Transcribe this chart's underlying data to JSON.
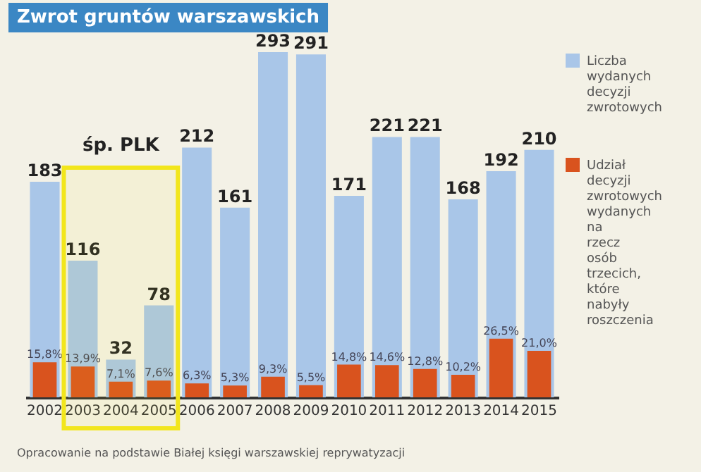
{
  "chart_data": {
    "type": "bar",
    "title": "Zwrot gruntów warszawskich",
    "categories": [
      "2002",
      "2003",
      "2004",
      "2005",
      "2006",
      "2007",
      "2008",
      "2009",
      "2010",
      "2011",
      "2012",
      "2013",
      "2014",
      "2015"
    ],
    "series": [
      {
        "name": "Liczba wydanych decyzji zwrotowych",
        "color": "#a9c6e8",
        "values": [
          183,
          116,
          32,
          78,
          212,
          161,
          293,
          291,
          171,
          221,
          221,
          168,
          192,
          210
        ],
        "value_labels": [
          "183",
          "116",
          "32",
          "78",
          "212",
          "161",
          "293",
          "291",
          "171",
          "221",
          "221",
          "168",
          "192",
          "210"
        ]
      },
      {
        "name": "Udział decyzji zwrotowych wydanych na rzecz osób trzecich, które nabyły roszczenia",
        "color": "#d9531e",
        "axis": "y2",
        "values": [
          15.8,
          13.9,
          7.1,
          7.6,
          6.3,
          5.3,
          9.3,
          5.5,
          14.8,
          14.6,
          12.8,
          10.2,
          26.5,
          21.0
        ],
        "value_labels": [
          "15,8%",
          "13,9%",
          "7,1%",
          "7,6%",
          "6,3%",
          "5,3%",
          "9,3%",
          "5,5%",
          "14,8%",
          "14,6%",
          "12,8%",
          "10,2%",
          "26,5%",
          "21,0%"
        ]
      }
    ],
    "ylim": [
      0,
      293
    ],
    "y2lim": [
      0,
      156
    ],
    "tick_labels": "x",
    "grid": false,
    "legend": "right",
    "bands": [
      {
        "axis": "x",
        "from": "2003",
        "to": "2005",
        "label": "śp. PLK",
        "color": "#f2e61c"
      }
    ],
    "annotations": [
      "Opracowanie na podstawie Białej księgi warszawskiej reprywatyzacji"
    ]
  }
}
